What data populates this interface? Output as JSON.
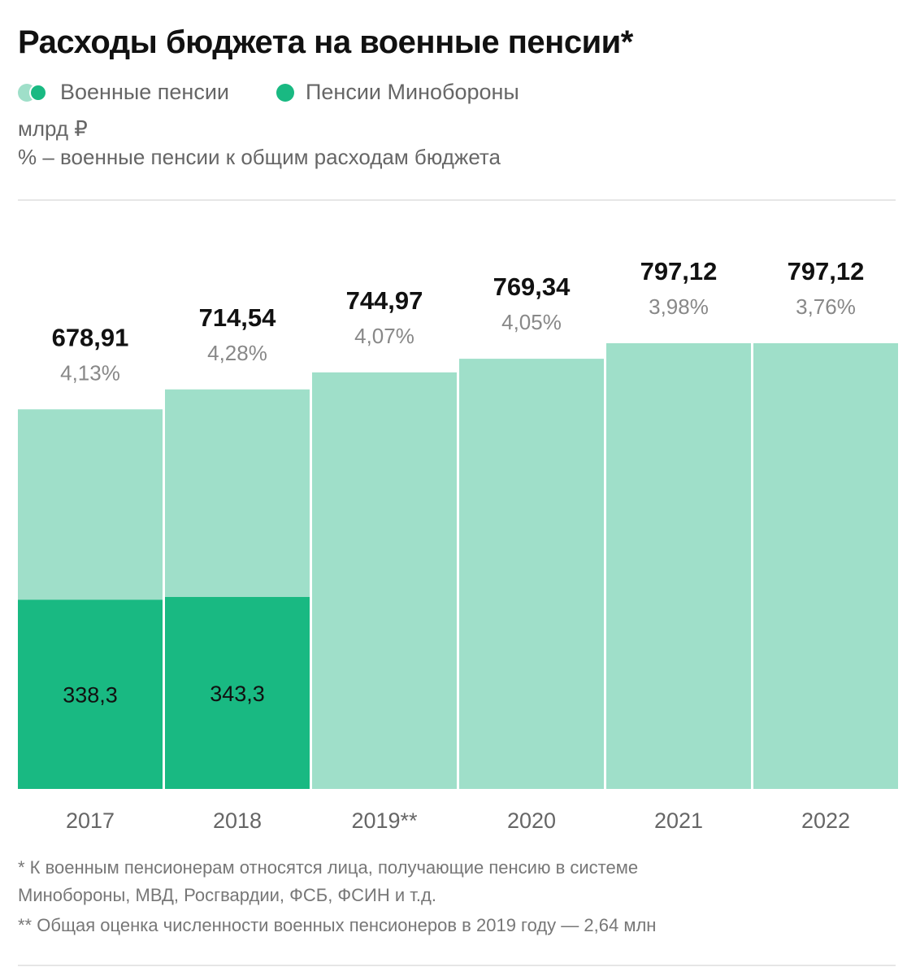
{
  "header": {
    "title": "Расходы бюджета на военные пенсии*",
    "legend": [
      {
        "label": "Военные пенсии"
      },
      {
        "label": "Пенсии Минобороны"
      }
    ],
    "unit": "млрд ₽",
    "note": "% – военные пенсии к общим расходам бюджета"
  },
  "colors": {
    "military_pensions": "#9fdfc9",
    "mod_pensions": "#19b982",
    "value_text": "#111111",
    "pct_text": "#888888"
  },
  "chart_data": {
    "type": "bar",
    "title": "Расходы бюджета на военные пенсии*",
    "categories": [
      "2017",
      "2018",
      "2019**",
      "2020",
      "2021",
      "2022"
    ],
    "series": [
      {
        "name": "Военные пенсии",
        "values": [
          678.91,
          714.54,
          744.97,
          769.34,
          797.12,
          797.12
        ]
      },
      {
        "name": "Пенсии Минобороны",
        "values": [
          338.3,
          343.3,
          null,
          null,
          null,
          null
        ]
      }
    ],
    "value_labels": [
      "678,91",
      "714,54",
      "744,97",
      "769,34",
      "797,12",
      "797,12"
    ],
    "mod_labels": [
      "338,3",
      "343,3",
      null,
      null,
      null,
      null
    ],
    "percent_labels": [
      "4,13%",
      "4,28%",
      "4,07%",
      "4,05%",
      "3,98%",
      "3,76%"
    ],
    "ylim": [
      0,
      797.12
    ],
    "xlabel": "",
    "ylabel": "млрд ₽",
    "grid": false,
    "legend_position": "top-left"
  },
  "footnotes": [
    "* К военным пенсионерам относятся лица, получающие пенсию в системе",
    "Минобороны, МВД, Росгвардии, ФСБ, ФСИН и т.д.",
    "** Общая оценка численности военных пенсионеров в 2019 году — 2,64 млн"
  ]
}
